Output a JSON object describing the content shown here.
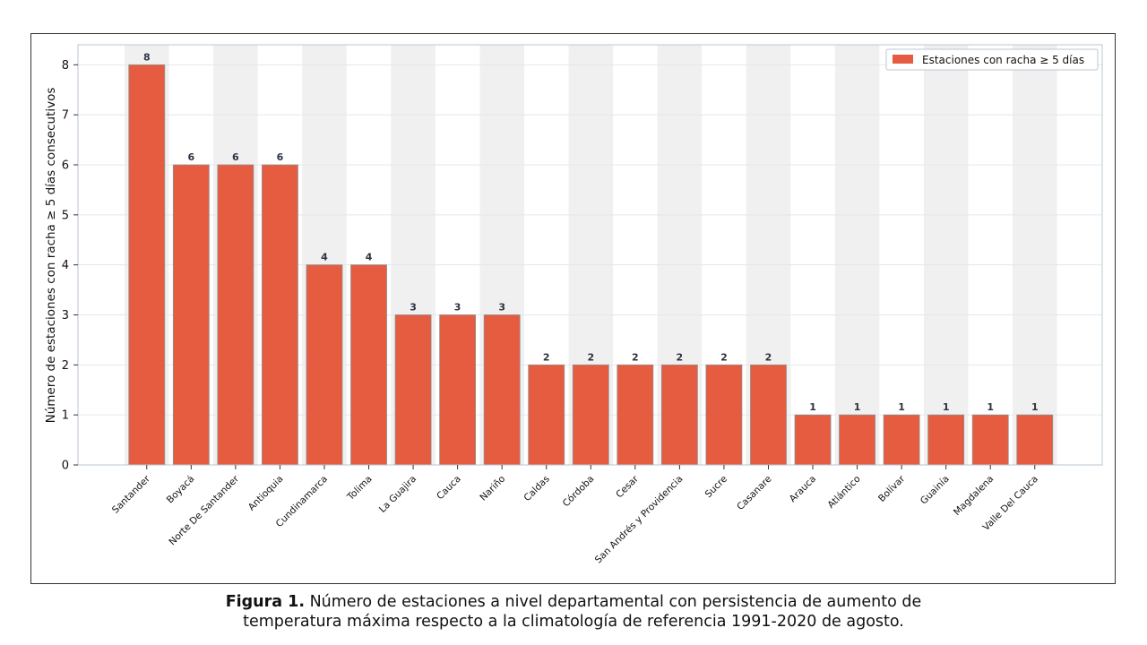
{
  "chart_data": {
    "type": "bar",
    "categories": [
      "Santander",
      "Boyacá",
      "Norte De Santander",
      "Antioquia",
      "Cundinamarca",
      "Tolima",
      "La Guajira",
      "Cauca",
      "Nariño",
      "Caldas",
      "Córdoba",
      "Cesar",
      "San Andrés y Providencia",
      "Sucre",
      "Casanare",
      "Arauca",
      "Atlántico",
      "Bolívar",
      "Guainía",
      "Magdalena",
      "Valle Del Cauca"
    ],
    "series": [
      {
        "name": "Estaciones con racha ≥ 5 días",
        "values": [
          8,
          6,
          6,
          6,
          4,
          4,
          3,
          3,
          3,
          2,
          2,
          2,
          2,
          2,
          2,
          1,
          1,
          1,
          1,
          1,
          1
        ],
        "color": "#E65C40"
      }
    ],
    "ylabel": "Número de estaciones con racha ≥ 5 días consecutivos",
    "xlabel": "",
    "ylim": [
      0,
      8.4
    ],
    "yticks": [
      0,
      1,
      2,
      3,
      4,
      5,
      6,
      7,
      8
    ],
    "grid": true,
    "alternating_band_color": "#F0F0F0",
    "legend_position": "top-right",
    "data_labels": true
  },
  "caption": {
    "label": "Figura 1.",
    "line1": " Número de estaciones a nivel departamental con persistencia de aumento de",
    "line2": "temperatura máxima respecto a la climatología de referencia 1991-2020 de agosto."
  }
}
